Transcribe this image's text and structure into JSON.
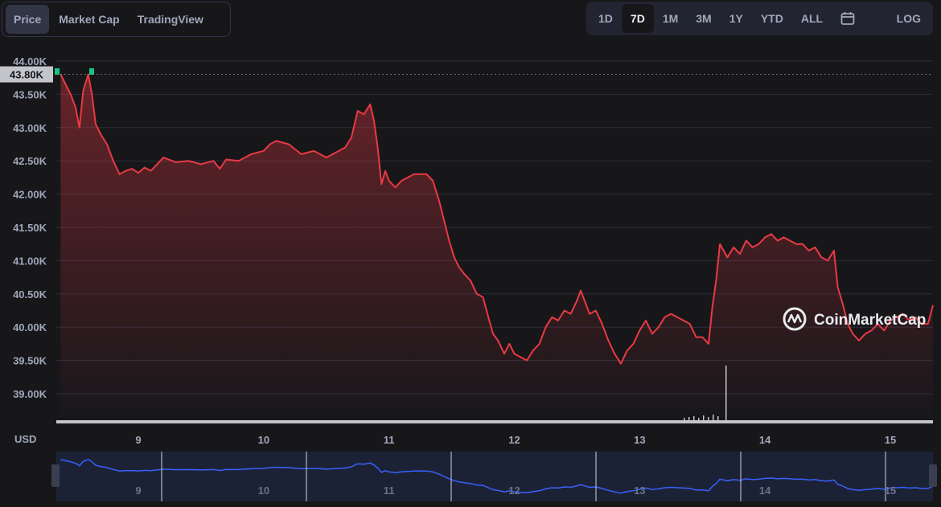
{
  "tabs": [
    {
      "label": "Price",
      "active": true
    },
    {
      "label": "Market Cap",
      "active": false
    },
    {
      "label": "TradingView",
      "active": false
    }
  ],
  "ranges": [
    {
      "label": "1D",
      "active": false
    },
    {
      "label": "7D",
      "active": true
    },
    {
      "label": "1M",
      "active": false
    },
    {
      "label": "3M",
      "active": false
    },
    {
      "label": "1Y",
      "active": false
    },
    {
      "label": "YTD",
      "active": false
    },
    {
      "label": "ALL",
      "active": false
    }
  ],
  "calendar_icon": "calendar-icon",
  "log_label": "LOG",
  "currency_label": "USD",
  "current_price_label": "43.80K",
  "watermark": "CoinMarketCap",
  "colors": {
    "line": "#ea3943",
    "up": "#16c784",
    "navigator": "#3861fb",
    "background": "#17171a"
  },
  "chart_data": {
    "type": "line",
    "y_ticks": [
      "44.00K",
      "43.50K",
      "43.00K",
      "42.50K",
      "42.00K",
      "41.50K",
      "41.00K",
      "40.50K",
      "40.00K",
      "39.50K",
      "39.00K"
    ],
    "y_tick_values": [
      44000,
      43500,
      43000,
      42500,
      42000,
      41500,
      41000,
      40500,
      40000,
      39500,
      39000
    ],
    "ylim": [
      38600,
      44100
    ],
    "x_ticks": [
      "9",
      "10",
      "11",
      "12",
      "13",
      "14",
      "15"
    ],
    "x_tick_values": [
      9,
      10,
      11,
      12,
      13,
      14,
      15
    ],
    "xlim": [
      8.38,
      15.34
    ],
    "series": [
      {
        "points": [
          [
            8.38,
            43800
          ],
          [
            8.42,
            43650
          ],
          [
            8.46,
            43500
          ],
          [
            8.5,
            43300
          ],
          [
            8.53,
            43000
          ],
          [
            8.56,
            43550
          ],
          [
            8.6,
            43800
          ],
          [
            8.63,
            43500
          ],
          [
            8.66,
            43050
          ],
          [
            8.7,
            42900
          ],
          [
            8.75,
            42750
          ],
          [
            8.8,
            42500
          ],
          [
            8.85,
            42300
          ],
          [
            8.9,
            42350
          ],
          [
            8.95,
            42380
          ],
          [
            9.0,
            42320
          ],
          [
            9.05,
            42400
          ],
          [
            9.1,
            42350
          ],
          [
            9.15,
            42450
          ],
          [
            9.2,
            42550
          ],
          [
            9.3,
            42480
          ],
          [
            9.4,
            42500
          ],
          [
            9.5,
            42450
          ],
          [
            9.6,
            42500
          ],
          [
            9.65,
            42380
          ],
          [
            9.7,
            42520
          ],
          [
            9.8,
            42500
          ],
          [
            9.9,
            42600
          ],
          [
            10.0,
            42650
          ],
          [
            10.05,
            42750
          ],
          [
            10.1,
            42800
          ],
          [
            10.2,
            42750
          ],
          [
            10.3,
            42600
          ],
          [
            10.4,
            42650
          ],
          [
            10.45,
            42600
          ],
          [
            10.5,
            42550
          ],
          [
            10.55,
            42600
          ],
          [
            10.6,
            42650
          ],
          [
            10.65,
            42700
          ],
          [
            10.7,
            42850
          ],
          [
            10.75,
            43250
          ],
          [
            10.8,
            43200
          ],
          [
            10.85,
            43350
          ],
          [
            10.88,
            43100
          ],
          [
            10.91,
            42700
          ],
          [
            10.94,
            42150
          ],
          [
            10.97,
            42350
          ],
          [
            11.0,
            42200
          ],
          [
            11.05,
            42100
          ],
          [
            11.1,
            42200
          ],
          [
            11.15,
            42250
          ],
          [
            11.2,
            42300
          ],
          [
            11.25,
            42300
          ],
          [
            11.3,
            42300
          ],
          [
            11.35,
            42200
          ],
          [
            11.4,
            41900
          ],
          [
            11.44,
            41600
          ],
          [
            11.48,
            41300
          ],
          [
            11.52,
            41050
          ],
          [
            11.56,
            40900
          ],
          [
            11.6,
            40800
          ],
          [
            11.65,
            40700
          ],
          [
            11.7,
            40500
          ],
          [
            11.75,
            40450
          ],
          [
            11.8,
            40100
          ],
          [
            11.83,
            39900
          ],
          [
            11.87,
            39800
          ],
          [
            11.92,
            39600
          ],
          [
            11.96,
            39750
          ],
          [
            12.0,
            39600
          ],
          [
            12.05,
            39550
          ],
          [
            12.1,
            39500
          ],
          [
            12.15,
            39650
          ],
          [
            12.2,
            39750
          ],
          [
            12.25,
            40000
          ],
          [
            12.3,
            40150
          ],
          [
            12.35,
            40100
          ],
          [
            12.4,
            40250
          ],
          [
            12.45,
            40200
          ],
          [
            12.5,
            40400
          ],
          [
            12.53,
            40550
          ],
          [
            12.56,
            40400
          ],
          [
            12.6,
            40200
          ],
          [
            12.65,
            40250
          ],
          [
            12.7,
            40050
          ],
          [
            12.75,
            39800
          ],
          [
            12.8,
            39600
          ],
          [
            12.85,
            39450
          ],
          [
            12.9,
            39650
          ],
          [
            12.95,
            39750
          ],
          [
            13.0,
            39950
          ],
          [
            13.05,
            40100
          ],
          [
            13.1,
            39900
          ],
          [
            13.15,
            40000
          ],
          [
            13.2,
            40150
          ],
          [
            13.25,
            40200
          ],
          [
            13.3,
            40150
          ],
          [
            13.35,
            40100
          ],
          [
            13.4,
            40050
          ],
          [
            13.45,
            39850
          ],
          [
            13.5,
            39850
          ],
          [
            13.55,
            39750
          ],
          [
            13.58,
            40300
          ],
          [
            13.61,
            40700
          ],
          [
            13.64,
            41250
          ],
          [
            13.67,
            41150
          ],
          [
            13.7,
            41050
          ],
          [
            13.75,
            41200
          ],
          [
            13.8,
            41100
          ],
          [
            13.85,
            41300
          ],
          [
            13.9,
            41200
          ],
          [
            13.95,
            41250
          ],
          [
            14.0,
            41350
          ],
          [
            14.05,
            41400
          ],
          [
            14.1,
            41300
          ],
          [
            14.15,
            41350
          ],
          [
            14.2,
            41300
          ],
          [
            14.25,
            41250
          ],
          [
            14.3,
            41250
          ],
          [
            14.35,
            41150
          ],
          [
            14.4,
            41200
          ],
          [
            14.45,
            41050
          ],
          [
            14.5,
            41000
          ],
          [
            14.55,
            41150
          ],
          [
            14.58,
            40600
          ],
          [
            14.62,
            40350
          ],
          [
            14.66,
            40050
          ],
          [
            14.7,
            39900
          ],
          [
            14.75,
            39800
          ],
          [
            14.8,
            39900
          ],
          [
            14.85,
            39950
          ],
          [
            14.9,
            40050
          ],
          [
            14.95,
            39950
          ],
          [
            15.0,
            40100
          ],
          [
            15.05,
            40150
          ],
          [
            15.1,
            40200
          ],
          [
            15.15,
            40100
          ],
          [
            15.2,
            40150
          ],
          [
            15.25,
            40050
          ],
          [
            15.3,
            40050
          ],
          [
            15.34,
            40330
          ]
        ]
      }
    ]
  }
}
